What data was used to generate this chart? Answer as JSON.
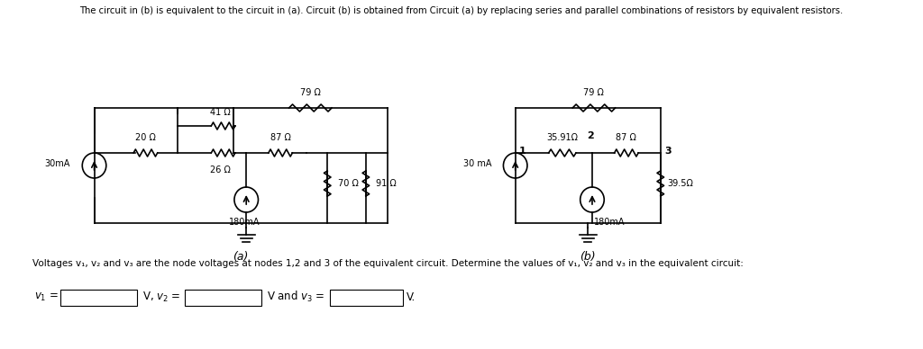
{
  "title_text": "The circuit in (b) is equivalent to the circuit in (a). Circuit (b) is obtained from Circuit (a) by replacing series and parallel combinations of resistors by equivalent resistors.",
  "bottom_text": "Voltages v₁, v₂ and v₃ are the node voltages at nodes 1,2 and 3 of the equivalent circuit. Determine the values of v₁, v₂ and v₃ in the equivalent circuit:",
  "label_a": "(a)",
  "label_b": "(b)",
  "v1_label": "v₁ =",
  "v2_label": "V, v₂ =",
  "v3_label": "V and v₃ =",
  "v_end": "V.",
  "bg_color": "#ffffff",
  "line_color": "#000000",
  "text_color": "#000000",
  "font_size": 8.5,
  "small_font": 7.5
}
